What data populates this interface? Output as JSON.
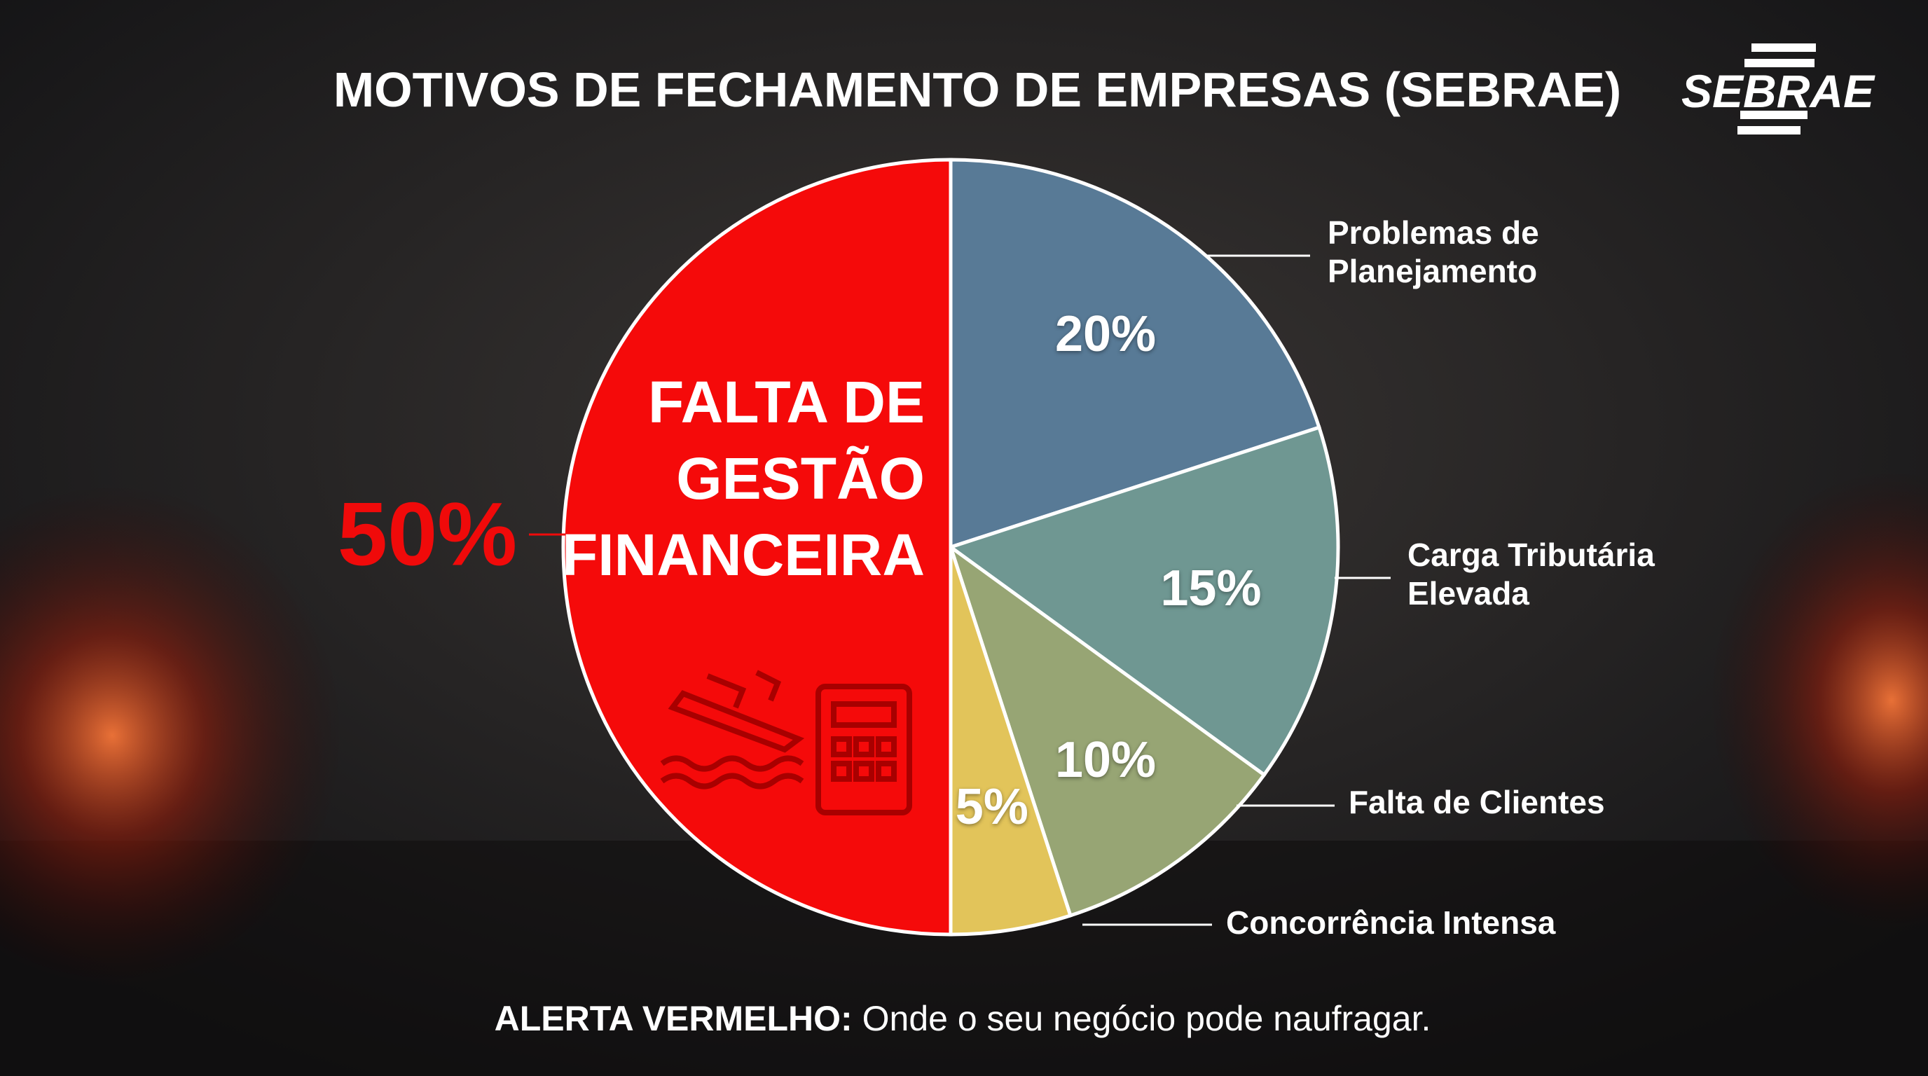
{
  "chart_data": {
    "type": "pie",
    "title": "MOTIVOS DE FECHAMENTO DE EMPRESAS (SEBRAE)",
    "categories": [
      "Problemas de Planejamento",
      "Carga Tributária Elevada",
      "Falta de Clientes",
      "Concorrência Intensa",
      "FALTA DE GESTÃO FINANCEIRA"
    ],
    "values": [
      20,
      15,
      10,
      5,
      50
    ],
    "value_labels": [
      "20%",
      "15%",
      "10%",
      "5%",
      "50%"
    ],
    "colors": [
      "#587a96",
      "#6f9792",
      "#97a574",
      "#e2c45a",
      "#f50a0a"
    ]
  },
  "logo": "SEBRAE",
  "footer": {
    "highlight": "ALERTA VERMELHO:",
    "text": "Onde o seu negócio pode naufragar."
  }
}
